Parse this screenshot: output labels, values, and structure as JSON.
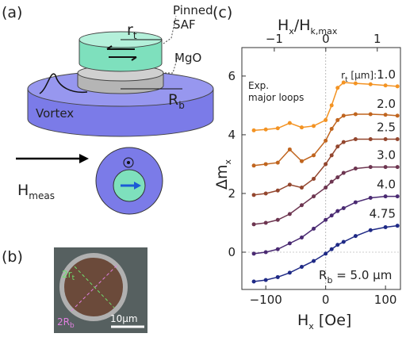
{
  "panel_a": {
    "label": "(a)",
    "pinned": "Pinned",
    "saf": "SAF",
    "mgo": "MgO",
    "r": "r",
    "r_sub": "t",
    "R": "R",
    "R_sub": "b",
    "vortex": "Vortex",
    "h": "H",
    "h_sub": "meas"
  },
  "panel_b": {
    "label": "(b)",
    "r": "2r",
    "r_sub": "t",
    "R": "2R",
    "R_sub": "b",
    "scale": "10μm"
  },
  "chart_data": {
    "type": "line",
    "label": "(c)",
    "xlabel": [
      "H",
      "x",
      " [Oe]"
    ],
    "ylabel": [
      "Δm",
      "x"
    ],
    "x2label": [
      "H",
      "x",
      "/H",
      "k,max"
    ],
    "annotation": [
      "Exp.",
      "major loops"
    ],
    "rb_note": [
      "R",
      "b",
      " = 5.0 μm"
    ],
    "rt_prefix": [
      "r",
      "t",
      " [μm]:"
    ],
    "xlim": [
      -140,
      125
    ],
    "ylim": [
      -1.27,
      6.97
    ],
    "x2lim": [
      -1.63,
      1.45
    ],
    "xticks": [
      {
        "value": -100,
        "label": "−100"
      },
      0,
      100
    ],
    "x2ticks": [
      {
        "value": -1,
        "label": "−1"
      },
      0,
      1
    ],
    "yticks": [
      0,
      2,
      4,
      6
    ],
    "zero_lines": true,
    "x": [
      -120,
      -100,
      -80,
      -60,
      -40,
      -20,
      0,
      10,
      20,
      30,
      50,
      75,
      100,
      120
    ],
    "series": [
      {
        "name": "1.0",
        "color": "#f39323",
        "values": [
          4.15,
          4.18,
          4.22,
          4.4,
          4.25,
          4.3,
          4.5,
          5.0,
          5.6,
          5.78,
          5.75,
          5.72,
          5.68,
          5.65
        ]
      },
      {
        "name": "2.0",
        "color": "#c0651f",
        "values": [
          2.95,
          3.0,
          3.05,
          3.5,
          3.1,
          3.3,
          3.8,
          4.2,
          4.5,
          4.65,
          4.7,
          4.7,
          4.68,
          4.65
        ]
      },
      {
        "name": "2.5",
        "color": "#93462e",
        "values": [
          1.95,
          2.0,
          2.1,
          2.3,
          2.2,
          2.5,
          3.0,
          3.3,
          3.6,
          3.75,
          3.85,
          3.85,
          3.85,
          3.85
        ]
      },
      {
        "name": "3.0",
        "color": "#6d3550",
        "values": [
          0.95,
          1.0,
          1.1,
          1.3,
          1.6,
          1.9,
          2.2,
          2.4,
          2.55,
          2.7,
          2.85,
          2.9,
          2.9,
          2.9
        ]
      },
      {
        "name": "4.0",
        "color": "#4a2a72",
        "values": [
          -0.05,
          0.0,
          0.1,
          0.3,
          0.5,
          0.8,
          1.1,
          1.25,
          1.4,
          1.5,
          1.7,
          1.85,
          1.9,
          1.9
        ]
      },
      {
        "name": "4.75",
        "color": "#1f2a86",
        "values": [
          -1.0,
          -0.95,
          -0.85,
          -0.7,
          -0.5,
          -0.3,
          -0.05,
          0.1,
          0.25,
          0.35,
          0.55,
          0.75,
          0.85,
          0.9
        ]
      }
    ]
  }
}
